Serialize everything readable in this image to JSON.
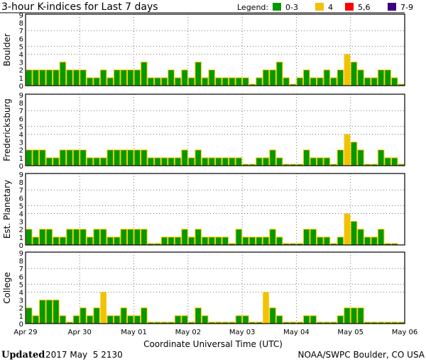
{
  "chart_data": {
    "type": "bar",
    "title": "3-hour K-indices for Last 7 days",
    "xlabel": "Coordinate Universal Time (UTC)",
    "ylim": [
      0,
      9
    ],
    "yticks": [
      "0",
      "1",
      "2",
      "3",
      "4",
      "5",
      "6",
      "7",
      "8",
      "9"
    ],
    "x_tick_labels": [
      "Apr 29",
      "Apr 30",
      "May 01",
      "May 02",
      "May 03",
      "May 04",
      "May 05",
      "May 06"
    ],
    "gridlines_y": [
      4,
      5,
      7
    ],
    "legend": {
      "label": "Legend:",
      "placement": "top-right",
      "entries": [
        {
          "label": "0-3",
          "color": "#009900"
        },
        {
          "label": "4",
          "color": "#f2c200"
        },
        {
          "label": "5,6",
          "color": "#ff0000"
        },
        {
          "label": "7-9",
          "color": "#3a007f"
        }
      ]
    },
    "series": [
      {
        "name": "Boulder",
        "values": [
          2,
          2,
          2,
          2,
          2,
          3,
          2,
          2,
          2,
          1,
          1,
          2,
          1,
          2,
          2,
          2,
          2,
          3,
          1,
          1,
          1,
          2,
          1,
          2,
          1,
          3,
          1,
          2,
          1,
          1,
          1,
          1,
          1,
          0,
          1,
          2,
          2,
          3,
          1,
          0,
          1,
          2,
          1,
          1,
          2,
          1,
          2,
          4,
          3,
          2,
          1,
          1,
          2,
          2,
          1,
          0
        ]
      },
      {
        "name": "Fredericksburg",
        "values": [
          2,
          2,
          2,
          1,
          1,
          2,
          2,
          2,
          2,
          1,
          1,
          1,
          2,
          2,
          2,
          2,
          2,
          2,
          1,
          1,
          1,
          1,
          1,
          2,
          1,
          2,
          1,
          1,
          1,
          1,
          1,
          1,
          0,
          0,
          1,
          1,
          2,
          1,
          0,
          0,
          0,
          2,
          1,
          1,
          1,
          0,
          2,
          4,
          3,
          2,
          0,
          0,
          2,
          1,
          1,
          0
        ]
      },
      {
        "name": "Est. Planetary",
        "values": [
          2,
          1,
          2,
          2,
          1,
          1,
          2,
          2,
          2,
          1,
          2,
          2,
          1,
          1,
          2,
          2,
          2,
          2,
          0,
          0,
          1,
          1,
          1,
          2,
          1,
          2,
          1,
          1,
          1,
          1,
          0,
          2,
          1,
          1,
          1,
          1,
          2,
          1,
          0,
          0,
          0,
          2,
          2,
          1,
          1,
          0,
          1,
          4,
          3,
          2,
          1,
          1,
          2,
          0,
          0,
          null
        ]
      },
      {
        "name": "College",
        "values": [
          2,
          1,
          3,
          3,
          3,
          1,
          0,
          1,
          2,
          1,
          2,
          4,
          1,
          1,
          2,
          1,
          1,
          2,
          0,
          0,
          0,
          0,
          1,
          1,
          0,
          2,
          1,
          0,
          0,
          0,
          0,
          1,
          1,
          0,
          0,
          4,
          2,
          1,
          0,
          0,
          0,
          1,
          1,
          0,
          0,
          0,
          1,
          2,
          2,
          2,
          0,
          0,
          0,
          0,
          0,
          0
        ]
      }
    ]
  },
  "footer": {
    "updated_label": "Updated",
    "updated_value": "2017 May  5 2130",
    "credit": "NOAA/SWPC Boulder, CO USA"
  }
}
